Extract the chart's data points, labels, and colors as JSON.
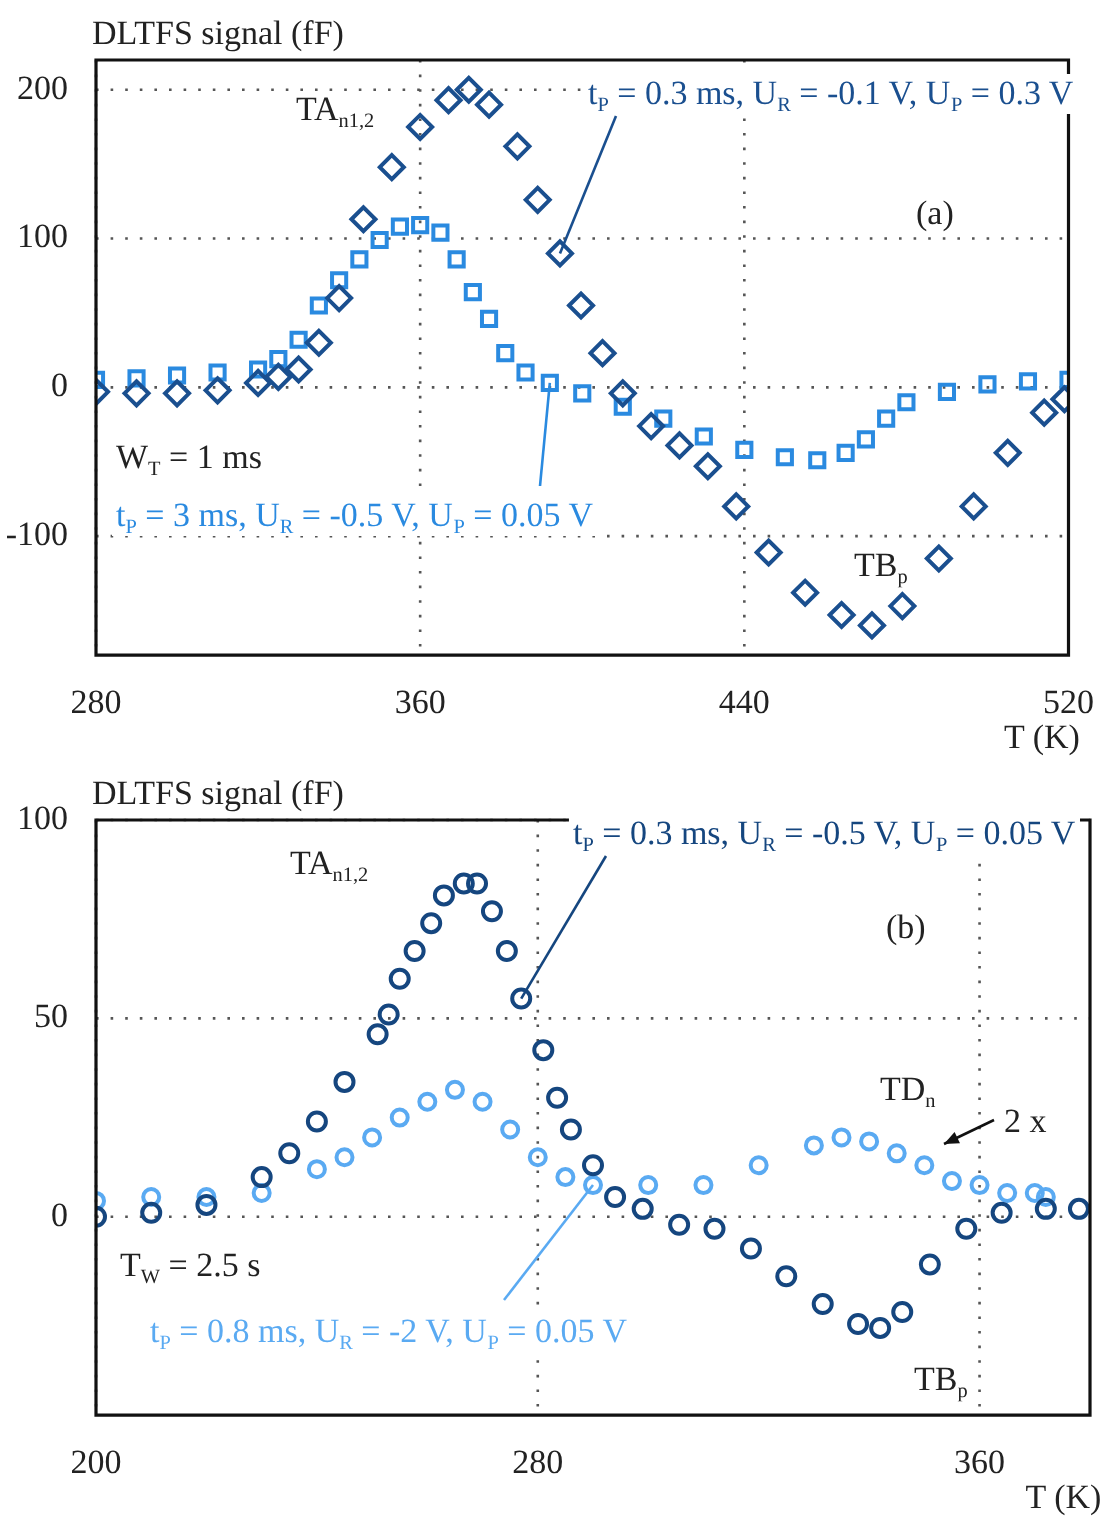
{
  "chart_data": [
    {
      "type": "scatter",
      "xlabel": "T (K)",
      "ylabel": "DLTFS signal (fF)",
      "xlim": [
        280,
        520
      ],
      "ylim": [
        -180,
        220
      ],
      "xticks": [
        280,
        360,
        440,
        520
      ],
      "yticks": [
        -100,
        0,
        100,
        200
      ],
      "grid": true,
      "series": [
        {
          "name": "t$_{P}$ = 0.3 ms, U$_{R}$ = -0.1 V, U$_{P}$ = 0.3 V",
          "color": "#1a4f8f",
          "marker": "diamond",
          "x": [
            280,
            290,
            300,
            310,
            320,
            325,
            330,
            335,
            340,
            346,
            353,
            360,
            367,
            372,
            377,
            384,
            389,
            394.5,
            399.7,
            405,
            410,
            417,
            424,
            431,
            438,
            446,
            455,
            464,
            471.5,
            479,
            488,
            496.6,
            505,
            514,
            519
          ],
          "values": [
            -3,
            -4,
            -4,
            -2,
            3,
            7,
            12,
            30,
            60,
            113,
            148,
            175,
            193,
            200,
            190,
            162,
            126,
            90,
            55,
            23,
            -4,
            -26,
            -39,
            -53,
            -80,
            -111,
            -138,
            -153,
            -160,
            -147,
            -115,
            -80,
            -44,
            -17,
            -8
          ]
        },
        {
          "name": "t$_{P}$ = 3 ms, U$_{R}$ = -0.5 V, U$_{P}$ = 0.05 V",
          "color": "#2a8ae0",
          "marker": "square",
          "x": [
            280,
            290,
            300,
            310,
            320,
            325,
            330,
            335,
            340,
            345,
            350,
            355,
            360,
            365,
            369,
            373,
            377,
            381,
            386,
            392,
            400,
            410,
            420,
            430,
            440,
            450,
            458,
            465,
            470,
            475,
            480,
            490,
            500,
            510,
            520
          ],
          "values": [
            5,
            6,
            8,
            10,
            12,
            19,
            32,
            55,
            72,
            86,
            99,
            108,
            109,
            104,
            86,
            64,
            46,
            23,
            10,
            3,
            -4,
            -13,
            -21,
            -33,
            -42,
            -47,
            -49,
            -44,
            -35,
            -21,
            -10,
            -3,
            2,
            4,
            5
          ]
        }
      ],
      "annotations": [
        "TA$_{n1,2}$",
        "(a)",
        "W$_{T}$ = 1 ms",
        "TB$_{p}$"
      ]
    },
    {
      "type": "scatter",
      "xlabel": "T (K)",
      "ylabel": "DLTFS signal (fF)",
      "xlim": [
        200,
        380
      ],
      "ylim": [
        -50,
        100
      ],
      "xticks": [
        200,
        280,
        360
      ],
      "yticks": [
        0,
        50,
        100
      ],
      "grid": true,
      "series": [
        {
          "name": "t$_{P}$ = 0.3 ms, U$_{R}$ = -0.5 V, U$_{P}$ = 0.05 V",
          "color": "#15467f",
          "marker": "circle",
          "x": [
            200,
            210,
            220,
            230,
            235,
            240,
            245,
            251,
            253,
            255,
            257.7,
            260.7,
            263,
            266.6,
            269,
            271.7,
            274.4,
            277,
            281,
            283.5,
            286,
            290,
            294,
            299,
            305.6,
            312,
            318.6,
            325,
            331.6,
            338,
            342,
            346,
            351,
            357.6,
            364,
            372,
            378
          ],
          "values": [
            0,
            1,
            3,
            10,
            16,
            24,
            34,
            46,
            51,
            60,
            67,
            74,
            81,
            84,
            84,
            77,
            67,
            55,
            42,
            30,
            22,
            13,
            5,
            2,
            -2,
            -3,
            -8,
            -15,
            -22,
            -27,
            -28,
            -24,
            -12,
            -3,
            1,
            2,
            2
          ]
        },
        {
          "name": "t$_{P}$ = 0.8 ms, U$_{R}$ = -2 V, U$_{P}$ = 0.05 V",
          "color": "#5aaaf2",
          "marker": "circle",
          "x": [
            200,
            210,
            220,
            230,
            240,
            245,
            250,
            255,
            260,
            265,
            270,
            275,
            280,
            285,
            290,
            300,
            310,
            320,
            330,
            335,
            340,
            345,
            350,
            355,
            360,
            365,
            370,
            372
          ],
          "values": [
            4,
            5,
            5,
            6,
            12,
            15,
            20,
            25,
            29,
            32,
            29,
            22,
            15,
            10,
            8,
            8,
            8,
            13,
            18,
            20,
            19,
            16,
            13,
            9,
            8,
            6,
            6,
            5
          ]
        }
      ],
      "annotations": [
        "TA$_{n1,2}$",
        "(b)",
        "TD$_{n}$",
        "2 x",
        "T$_{W}$ = 2.5 s",
        "TB$_{p}$"
      ]
    }
  ]
}
